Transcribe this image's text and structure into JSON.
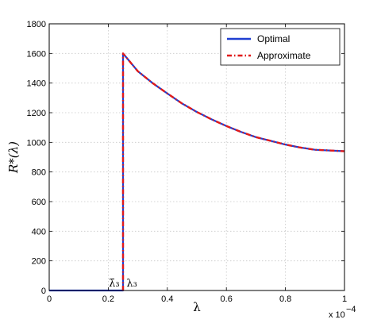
{
  "chart_data": {
    "type": "line",
    "title": "",
    "xlabel": "λ",
    "ylabel": "R*(λ)",
    "xlim": [
      0,
      1
    ],
    "ylim": [
      0,
      1800
    ],
    "x_ticks": [
      0,
      0.2,
      0.4,
      0.6,
      0.8,
      1
    ],
    "x_tick_labels": [
      "0",
      "0.2",
      "0.4",
      "0.6",
      "0.8",
      "1"
    ],
    "y_ticks": [
      0,
      200,
      400,
      600,
      800,
      1000,
      1200,
      1400,
      1600,
      1800
    ],
    "y_tick_labels": [
      "0",
      "200",
      "400",
      "600",
      "800",
      "1000",
      "1200",
      "1400",
      "1600",
      "1800"
    ],
    "x_multiplier_base": "x 10",
    "x_multiplier_exponent": "−4",
    "grid": true,
    "legend_position": "top-right",
    "series": [
      {
        "name": "Optimal",
        "color": "#1f3fd1",
        "style": "solid",
        "x": [
          0,
          0.25,
          0.25,
          0.3,
          0.35,
          0.4,
          0.45,
          0.5,
          0.55,
          0.6,
          0.65,
          0.7,
          0.75,
          0.8,
          0.85,
          0.9,
          0.95,
          1.0
        ],
        "y": [
          0,
          0,
          1600,
          1480,
          1400,
          1330,
          1262,
          1205,
          1155,
          1110,
          1070,
          1035,
          1010,
          985,
          965,
          950,
          945,
          940
        ]
      },
      {
        "name": "Approximate",
        "color": "#e01b1b",
        "style": "dashdot",
        "x": [
          0.25,
          0.25,
          0.3,
          0.35,
          0.4,
          0.45,
          0.5,
          0.55,
          0.6,
          0.65,
          0.7,
          0.75,
          0.8,
          0.85,
          0.9,
          0.95,
          1.0
        ],
        "y": [
          0,
          1600,
          1480,
          1400,
          1330,
          1262,
          1205,
          1155,
          1110,
          1070,
          1035,
          1010,
          985,
          965,
          950,
          945,
          940
        ]
      }
    ],
    "annotations": [
      {
        "text": "λ̄₃",
        "x": 0.22,
        "y": 0
      },
      {
        "text": "λ₃",
        "x": 0.28,
        "y": 0
      }
    ]
  }
}
